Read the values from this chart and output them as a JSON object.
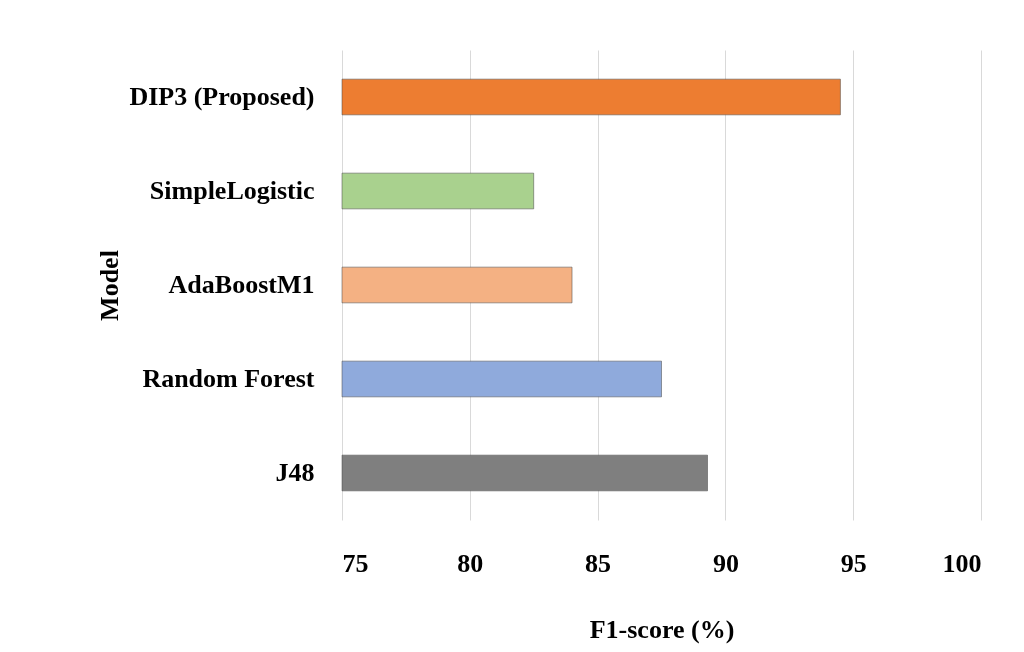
{
  "chart_data": {
    "type": "bar",
    "orientation": "horizontal",
    "xlabel": "F1-score (%)",
    "ylabel": "Model",
    "categories": [
      "DIP3 (Proposed)",
      "SimpleLogistic",
      "AdaBoostM1",
      "Random Forest",
      "J48"
    ],
    "values": [
      94.5,
      82.5,
      84,
      87.5,
      89.3
    ],
    "colors": [
      "#ed7d31",
      "#a9d18e",
      "#f4b183",
      "#8faadc",
      "#7f7f7f"
    ],
    "xlim": [
      75,
      100
    ],
    "xticks": [
      75,
      80,
      85,
      90,
      95,
      100
    ],
    "grid": "x"
  }
}
